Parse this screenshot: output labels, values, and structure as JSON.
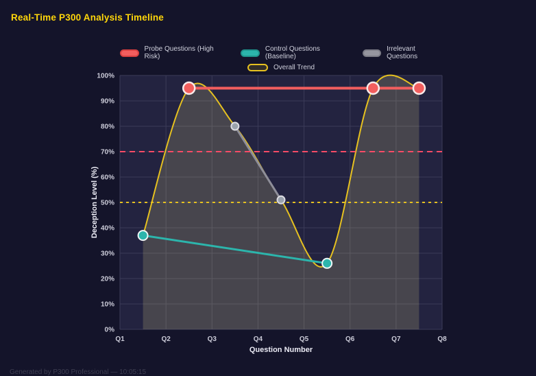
{
  "page": {
    "title": "Real-Time P300 Analysis Timeline",
    "footer": "Generated by P300 Professional — 10:05:15"
  },
  "colors": {
    "background": "#14142a",
    "plot_bg": "#232340",
    "grid": "#3b3b58",
    "title": "#ffd60a",
    "probe": "#f25e5e",
    "control": "#2cb5ac",
    "irrelevant": "#8e8e99",
    "trend": "#e6c120",
    "threshold_high": "#fb4b66",
    "threshold_mid": "#e6c120",
    "area_fill": "rgba(240,230,140,0.18)"
  },
  "legend": {
    "rows": [
      [
        {
          "label": "Probe Questions (High Risk)",
          "fill": "#f25e5e",
          "border": "#d84040"
        },
        {
          "label": "Control Questions (Baseline)",
          "fill": "#2cb5ac",
          "border": "#1f958d"
        },
        {
          "label": "Irrelevant Questions",
          "fill": "#96969f",
          "border": "#7d7d87"
        }
      ],
      [
        {
          "label": "Overall Trend",
          "fill": "rgba(230,193,32,0.15)",
          "border": "#e6c120"
        }
      ]
    ]
  },
  "chart_data": {
    "type": "line",
    "x_title": "Question Number",
    "y_title": "Deception Level (%)",
    "x_categories": [
      "Q1",
      "Q2",
      "Q3",
      "Q4",
      "Q5",
      "Q6",
      "Q7",
      "Q8"
    ],
    "x_range": [
      1,
      8
    ],
    "y_range": [
      0,
      100
    ],
    "y_tick_step": 10,
    "y_tick_labels": [
      "0%",
      "10%",
      "20%",
      "30%",
      "40%",
      "50%",
      "60%",
      "70%",
      "80%",
      "90%",
      "100%"
    ],
    "grid": true,
    "legend_position": "top",
    "series": [
      {
        "name": "Overall Trend",
        "color": "#e6c120",
        "line_width": 2,
        "smooth": true,
        "area_fill": "rgba(240,230,140,0.18)",
        "point_radius": 0,
        "points": [
          {
            "x": 1.5,
            "y": 37
          },
          {
            "x": 2.5,
            "y": 95
          },
          {
            "x": 3.5,
            "y": 80
          },
          {
            "x": 4.5,
            "y": 51
          },
          {
            "x": 5.5,
            "y": 26
          },
          {
            "x": 6.5,
            "y": 95
          },
          {
            "x": 7.5,
            "y": 95
          }
        ]
      },
      {
        "name": "Irrelevant Questions",
        "color": "#8e8e99",
        "line_width": 3,
        "point_radius": 5.5,
        "point_fill": "#9aa2ad",
        "point_stroke": "#dcdce2",
        "point_stroke_width": 2,
        "points": [
          {
            "x": 3.5,
            "y": 80
          },
          {
            "x": 4.5,
            "y": 51
          }
        ]
      },
      {
        "name": "Control Questions (Baseline)",
        "color": "#2cb5ac",
        "line_width": 3,
        "point_radius": 7,
        "point_fill": "#2cb5ac",
        "point_stroke": "#eef6f6",
        "point_stroke_width": 2,
        "points": [
          {
            "x": 1.5,
            "y": 37
          },
          {
            "x": 5.5,
            "y": 26
          }
        ]
      },
      {
        "name": "Probe Questions (High Risk)",
        "color": "#f25e5e",
        "line_width": 4,
        "point_radius": 8.5,
        "point_fill": "#f25e5e",
        "point_stroke": "#f7eaea",
        "point_stroke_width": 2.5,
        "points": [
          {
            "x": 2.5,
            "y": 95
          },
          {
            "x": 6.5,
            "y": 95
          },
          {
            "x": 7.5,
            "y": 95
          }
        ]
      }
    ],
    "thresholds": [
      {
        "value": 70,
        "color": "#fb4b66",
        "dash": "8 6",
        "width": 2
      },
      {
        "value": 50,
        "color": "#e6c120",
        "dash": "4 5",
        "width": 2
      }
    ]
  }
}
